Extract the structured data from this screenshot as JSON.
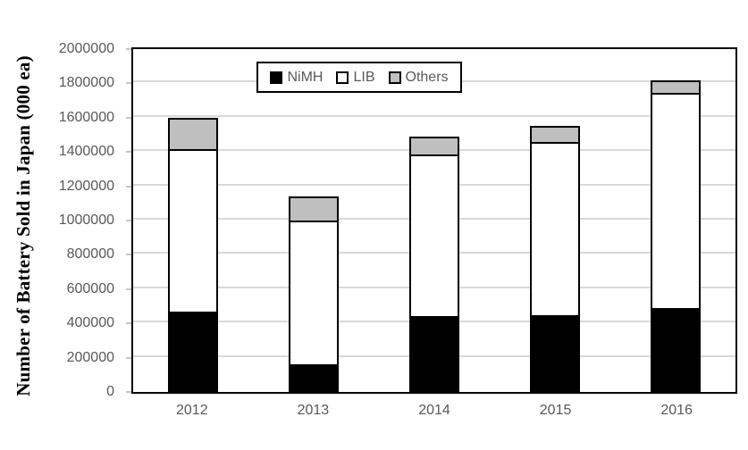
{
  "chart_data": {
    "type": "bar",
    "stacked": true,
    "title": "",
    "xlabel": "",
    "ylabel": "Number of Battery Sold in Japan (000 ea)",
    "categories": [
      "2012",
      "2013",
      "2014",
      "2015",
      "2016"
    ],
    "series": [
      {
        "name": "NiMH",
        "color": "#000000",
        "values": [
          460000,
          150000,
          430000,
          440000,
          480000
        ]
      },
      {
        "name": "LIB",
        "color": "#ffffff",
        "values": [
          960000,
          850000,
          955000,
          1020000,
          1265000
        ]
      },
      {
        "name": "Others",
        "color": "#bfbfbf",
        "values": [
          180000,
          140000,
          105000,
          95000,
          75000
        ]
      }
    ],
    "stack_totals": [
      1600000,
      1140000,
      1490000,
      1555000,
      1820000
    ],
    "ylim": [
      0,
      2000000
    ],
    "ytick_step": 200000,
    "ytick_labels": [
      "0",
      "200000",
      "400000",
      "600000",
      "800000",
      "1000000",
      "1200000",
      "1400000",
      "1600000",
      "1800000",
      "2000000"
    ],
    "grid": "horizontal",
    "legend": {
      "position": "top-center-inside",
      "entries": [
        "NiMH",
        "LIB",
        "Others"
      ]
    },
    "colors": {
      "axis_border": "#000000",
      "gridline": "#d9d9d9",
      "tick_mark": "#c6c6c6",
      "tick_text": "#595959",
      "background": "#ffffff"
    }
  }
}
